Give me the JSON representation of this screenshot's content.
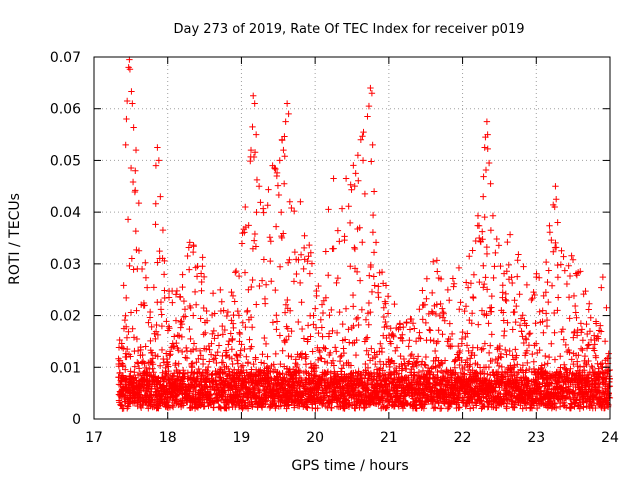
{
  "chart_data": {
    "type": "scatter",
    "title": "Day 273 of 2019, Rate Of TEC Index for receiver p019",
    "xlabel": "GPS time / hours",
    "ylabel": "ROTI / TECUs",
    "xlim": [
      17,
      24
    ],
    "ylim": [
      0,
      0.07
    ],
    "grid": true,
    "marker": "+",
    "series_color": "#ff0000",
    "x_ticks": [
      {
        "value": 17,
        "label": "17"
      },
      {
        "value": 18,
        "label": "18"
      },
      {
        "value": 19,
        "label": "19"
      },
      {
        "value": 20,
        "label": "20"
      },
      {
        "value": 21,
        "label": "21"
      },
      {
        "value": 22,
        "label": "22"
      },
      {
        "value": 23,
        "label": "23"
      },
      {
        "value": 24,
        "label": "24"
      }
    ],
    "y_ticks": [
      {
        "value": 0,
        "label": "0"
      },
      {
        "value": 0.01,
        "label": "0.01"
      },
      {
        "value": 0.02,
        "label": "0.02"
      },
      {
        "value": 0.03,
        "label": "0.03"
      },
      {
        "value": 0.04,
        "label": "0.04"
      },
      {
        "value": 0.05,
        "label": "0.05"
      },
      {
        "value": 0.06,
        "label": "0.06"
      },
      {
        "value": 0.07,
        "label": "0.07"
      }
    ],
    "x_start": 17.33,
    "x_end": 24.0,
    "baseline_range": [
      0.002,
      0.009
    ],
    "envelope": [
      [
        17.33,
        0.012
      ],
      [
        17.4,
        0.034
      ],
      [
        17.45,
        0.04
      ],
      [
        17.48,
        0.069
      ],
      [
        17.52,
        0.062
      ],
      [
        17.58,
        0.052
      ],
      [
        17.65,
        0.04
      ],
      [
        17.72,
        0.028
      ],
      [
        17.8,
        0.022
      ],
      [
        17.85,
        0.053
      ],
      [
        17.92,
        0.048
      ],
      [
        17.98,
        0.03
      ],
      [
        18.05,
        0.027
      ],
      [
        18.15,
        0.025
      ],
      [
        18.3,
        0.035
      ],
      [
        18.45,
        0.033
      ],
      [
        18.55,
        0.026
      ],
      [
        18.65,
        0.028
      ],
      [
        18.8,
        0.022
      ],
      [
        18.9,
        0.03
      ],
      [
        19.0,
        0.035
      ],
      [
        19.08,
        0.045
      ],
      [
        19.15,
        0.062
      ],
      [
        19.2,
        0.05
      ],
      [
        19.3,
        0.042
      ],
      [
        19.45,
        0.052
      ],
      [
        19.55,
        0.055
      ],
      [
        19.62,
        0.06
      ],
      [
        19.7,
        0.045
      ],
      [
        19.8,
        0.041
      ],
      [
        19.9,
        0.035
      ],
      [
        20.0,
        0.033
      ],
      [
        20.1,
        0.025
      ],
      [
        20.2,
        0.045
      ],
      [
        20.3,
        0.04
      ],
      [
        20.4,
        0.046
      ],
      [
        20.5,
        0.05
      ],
      [
        20.6,
        0.054
      ],
      [
        20.7,
        0.06
      ],
      [
        20.75,
        0.064
      ],
      [
        20.82,
        0.042
      ],
      [
        20.9,
        0.03
      ],
      [
        21.0,
        0.024
      ],
      [
        21.2,
        0.02
      ],
      [
        21.4,
        0.022
      ],
      [
        21.55,
        0.033
      ],
      [
        21.7,
        0.031
      ],
      [
        21.85,
        0.028
      ],
      [
        22.0,
        0.03
      ],
      [
        22.15,
        0.035
      ],
      [
        22.28,
        0.048
      ],
      [
        22.33,
        0.057
      ],
      [
        22.38,
        0.045
      ],
      [
        22.5,
        0.035
      ],
      [
        22.65,
        0.036
      ],
      [
        22.8,
        0.033
      ],
      [
        22.95,
        0.026
      ],
      [
        23.1,
        0.033
      ],
      [
        23.18,
        0.038
      ],
      [
        23.25,
        0.045
      ],
      [
        23.35,
        0.036
      ],
      [
        23.5,
        0.034
      ],
      [
        23.65,
        0.026
      ],
      [
        23.8,
        0.018
      ],
      [
        23.9,
        0.028
      ],
      [
        24.0,
        0.022
      ]
    ],
    "spikes": [
      {
        "x": 17.48,
        "y": 0.0695
      },
      {
        "x": 17.47,
        "y": 0.068
      },
      {
        "x": 17.52,
        "y": 0.061
      },
      {
        "x": 17.45,
        "y": 0.0615
      },
      {
        "x": 17.44,
        "y": 0.058
      },
      {
        "x": 17.57,
        "y": 0.052
      },
      {
        "x": 17.43,
        "y": 0.053
      },
      {
        "x": 17.86,
        "y": 0.0525
      },
      {
        "x": 17.88,
        "y": 0.05
      },
      {
        "x": 17.84,
        "y": 0.049
      },
      {
        "x": 17.9,
        "y": 0.043
      },
      {
        "x": 17.56,
        "y": 0.048
      },
      {
        "x": 19.16,
        "y": 0.0625
      },
      {
        "x": 19.18,
        "y": 0.061
      },
      {
        "x": 19.15,
        "y": 0.0565
      },
      {
        "x": 19.2,
        "y": 0.055
      },
      {
        "x": 19.13,
        "y": 0.052
      },
      {
        "x": 19.24,
        "y": 0.045
      },
      {
        "x": 19.62,
        "y": 0.061
      },
      {
        "x": 19.64,
        "y": 0.059
      },
      {
        "x": 19.6,
        "y": 0.0575
      },
      {
        "x": 19.55,
        "y": 0.054
      },
      {
        "x": 19.57,
        "y": 0.052
      },
      {
        "x": 19.52,
        "y": 0.05
      },
      {
        "x": 19.48,
        "y": 0.047
      },
      {
        "x": 19.58,
        "y": 0.0455
      },
      {
        "x": 19.8,
        "y": 0.042
      },
      {
        "x": 20.75,
        "y": 0.064
      },
      {
        "x": 20.77,
        "y": 0.063
      },
      {
        "x": 20.73,
        "y": 0.0605
      },
      {
        "x": 20.71,
        "y": 0.0585
      },
      {
        "x": 20.62,
        "y": 0.054
      },
      {
        "x": 20.58,
        "y": 0.051
      },
      {
        "x": 20.65,
        "y": 0.05
      },
      {
        "x": 20.55,
        "y": 0.0475
      },
      {
        "x": 20.78,
        "y": 0.053
      },
      {
        "x": 20.42,
        "y": 0.0465
      },
      {
        "x": 20.25,
        "y": 0.0465
      },
      {
        "x": 20.8,
        "y": 0.044
      },
      {
        "x": 22.33,
        "y": 0.0575
      },
      {
        "x": 22.34,
        "y": 0.055
      },
      {
        "x": 22.31,
        "y": 0.0545
      },
      {
        "x": 22.3,
        "y": 0.0525
      },
      {
        "x": 22.36,
        "y": 0.0495
      },
      {
        "x": 22.28,
        "y": 0.043
      },
      {
        "x": 22.38,
        "y": 0.0455
      },
      {
        "x": 23.26,
        "y": 0.045
      },
      {
        "x": 23.27,
        "y": 0.0425
      },
      {
        "x": 23.25,
        "y": 0.041
      },
      {
        "x": 23.29,
        "y": 0.038
      }
    ]
  }
}
